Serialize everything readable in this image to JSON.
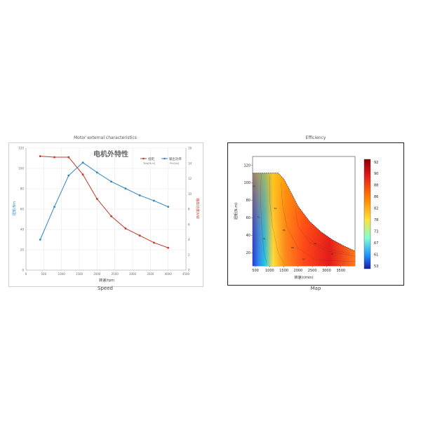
{
  "chart_data": [
    {
      "type": "line",
      "title": "Motor external characteristics",
      "subtitle": "电机外特性",
      "caption": "Speed",
      "xlabel": "转速/rpm",
      "ylabel": "扭矩/Nm",
      "y2label": "输出功率/kW",
      "xlim": [
        0,
        4500
      ],
      "ylim": [
        0,
        120
      ],
      "y2lim": [
        0,
        16
      ],
      "xticks": [
        "0",
        "500",
        "1000",
        "1500",
        "2000",
        "2500",
        "3000",
        "3500",
        "4000",
        "4500"
      ],
      "yticks": [
        "0",
        "20",
        "40",
        "60",
        "80",
        "100",
        "120"
      ],
      "y2ticks": [
        "0",
        "2",
        "4",
        "6",
        "8",
        "10",
        "12",
        "14",
        "16"
      ],
      "legend": "top-right",
      "grid": true,
      "series": [
        {
          "name": "扭矩",
          "legend_sub": "Torq[N.m]",
          "axis": "left",
          "color": "#c0392b",
          "x": [
            400,
            800,
            1200,
            1600,
            2000,
            2400,
            2800,
            3200,
            3600,
            4000
          ],
          "y": [
            112,
            111,
            111,
            94,
            70,
            53,
            41,
            34,
            27,
            22
          ]
        },
        {
          "name": "输出功率",
          "legend_sub": "Pm[kw]",
          "axis": "right",
          "color": "#2e86c1",
          "x": [
            400,
            800,
            1200,
            1600,
            2000,
            2400,
            2800,
            3200,
            3600,
            4000
          ],
          "y": [
            4.0,
            8.3,
            12.4,
            14.1,
            12.8,
            11.6,
            10.7,
            9.8,
            9.1,
            8.3
          ]
        }
      ]
    },
    {
      "type": "heatmap",
      "title": "Efficiency",
      "caption": "Map",
      "xlabel": "转速(r/min)",
      "ylabel": "扭矩(N.m)",
      "xlim": [
        400,
        4000
      ],
      "ylim": [
        5,
        130
      ],
      "xticks": [
        "500",
        "1000",
        "1500",
        "2000",
        "2500",
        "3000",
        "3500"
      ],
      "yticks": [
        "20",
        "40",
        "60",
        "80",
        "100",
        "120"
      ],
      "colorbar_ticks": [
        "92",
        "90",
        "88",
        "86",
        "82",
        "78",
        "73",
        "67",
        "61",
        "53"
      ],
      "contour_labels": [
        "55",
        "73",
        "78",
        "82",
        "86",
        "88",
        "90",
        "92",
        "67"
      ],
      "colors": {
        "low": "#1f3fd6",
        "mid_low": "#22c7e8",
        "mid": "#ffe23a",
        "mid_high": "#ff8c1a",
        "high": "#e31a1c",
        "boundary": "#333333"
      }
    }
  ]
}
